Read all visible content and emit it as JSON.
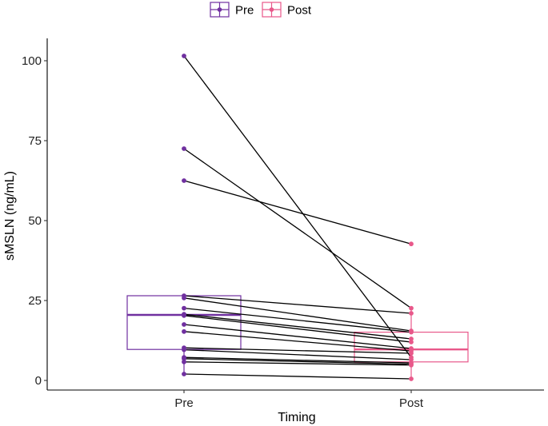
{
  "chart_data": {
    "type": "boxplot-paired",
    "title": "",
    "xlabel": "Timing",
    "ylabel": "sMSLN (ng/mL)",
    "categories": [
      "Pre",
      "Post"
    ],
    "ylim": [
      -3,
      107
    ],
    "yticks": [
      0,
      25,
      50,
      75,
      100
    ],
    "ytick_labels": [
      "0",
      "25",
      "50",
      "75",
      "100"
    ],
    "legend": {
      "position": "top",
      "entries": [
        "Pre",
        "Post"
      ]
    },
    "colors": {
      "Pre": "#7030a0",
      "Post": "#e8588a",
      "line": "#000000"
    },
    "boxes": [
      {
        "group": "Pre",
        "q1": 9.7,
        "median": 20.5,
        "q3": 26.5,
        "min": 2.0,
        "max": 26.5
      },
      {
        "group": "Post",
        "q1": 5.8,
        "median": 9.7,
        "q3": 15.1,
        "min": 0.5,
        "max": 22.6
      }
    ],
    "pairs": [
      {
        "pre": 101.5,
        "post": 7.2
      },
      {
        "pre": 72.5,
        "post": 22.6
      },
      {
        "pre": 62.5,
        "post": 42.7
      },
      {
        "pre": 26.5,
        "post": 21.0
      },
      {
        "pre": 25.8,
        "post": 15.5
      },
      {
        "pre": 22.6,
        "post": 15.1
      },
      {
        "pre": 20.7,
        "post": 13.0
      },
      {
        "pre": 20.3,
        "post": 12.0
      },
      {
        "pre": 17.5,
        "post": 10.0
      },
      {
        "pre": 15.3,
        "post": 9.2
      },
      {
        "pre": 10.2,
        "post": 8.5
      },
      {
        "pre": 9.6,
        "post": 6.5
      },
      {
        "pre": 7.2,
        "post": 5.5
      },
      {
        "pre": 6.8,
        "post": 5.1
      },
      {
        "pre": 5.8,
        "post": 4.8
      },
      {
        "pre": 2.0,
        "post": 0.5
      }
    ]
  }
}
